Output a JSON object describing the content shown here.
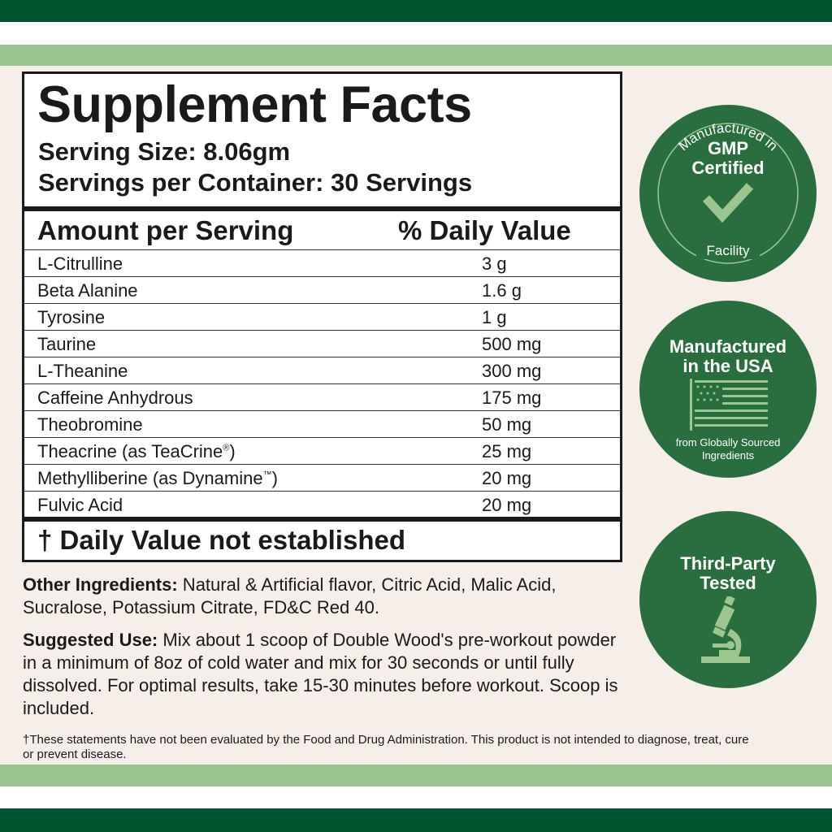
{
  "colors": {
    "dark_green": "#005430",
    "light_green": "#99c48e",
    "badge_green": "#2a6e40",
    "background": "#f6eee9"
  },
  "facts": {
    "title": "Supplement Facts",
    "serving_size": "Serving Size: 8.06gm",
    "servings_per_container": "Servings per Container: 30 Servings",
    "header_amount": "Amount per Serving",
    "header_dv": "% Daily Value",
    "rows": [
      {
        "name": "L-Citrulline",
        "amount": "3 g"
      },
      {
        "name": "Beta Alanine",
        "amount": "1.6 g"
      },
      {
        "name": "Tyrosine",
        "amount": "1 g"
      },
      {
        "name": "Taurine",
        "amount": "500 mg"
      },
      {
        "name": "L-Theanine",
        "amount": "300 mg"
      },
      {
        "name": "Caffeine Anhydrous",
        "amount": "175 mg"
      },
      {
        "name": "Theobromine",
        "amount": "50 mg"
      },
      {
        "name": "Theacrine (as TeaCrine",
        "mark": "®",
        "close": ")",
        "amount": "25 mg"
      },
      {
        "name": "Methylliberine (as Dynamine",
        "mark": "™",
        "close": ")",
        "amount": "20 mg"
      },
      {
        "name": "Fulvic Acid",
        "amount": "20 mg"
      }
    ],
    "footnote": "† Daily Value not established"
  },
  "other_ingredients": {
    "label": "Other Ingredients:",
    "text": " Natural & Artificial flavor, Citric Acid, Malic Acid, Sucralose, Potassium Citrate, FD&C Red 40."
  },
  "suggested_use": {
    "label": "Suggested Use:",
    "text": " Mix about 1 scoop of Double Wood's pre-workout powder in a minimum of 8oz of cold water and mix for 30 seconds or until fully dissolved. For optimal results, take 15-30 minutes before workout. Scoop is included."
  },
  "disclaimer": "†These statements have not been evaluated by the Food and Drug Administration. This product is not intended to diagnose, treat, cure or prevent disease.",
  "badges": [
    {
      "top": "Manufactured in",
      "title1": "GMP",
      "title2": "Certified",
      "bottom": "Facility",
      "icon": "checkmark-icon"
    },
    {
      "title1": "Manufactured",
      "title2": "in the USA",
      "sub1": "from Globally Sourced",
      "sub2": "Ingredients",
      "icon": "us-flag-icon"
    },
    {
      "title1": "Third-Party",
      "title2": "Tested",
      "icon": "microscope-icon"
    }
  ]
}
